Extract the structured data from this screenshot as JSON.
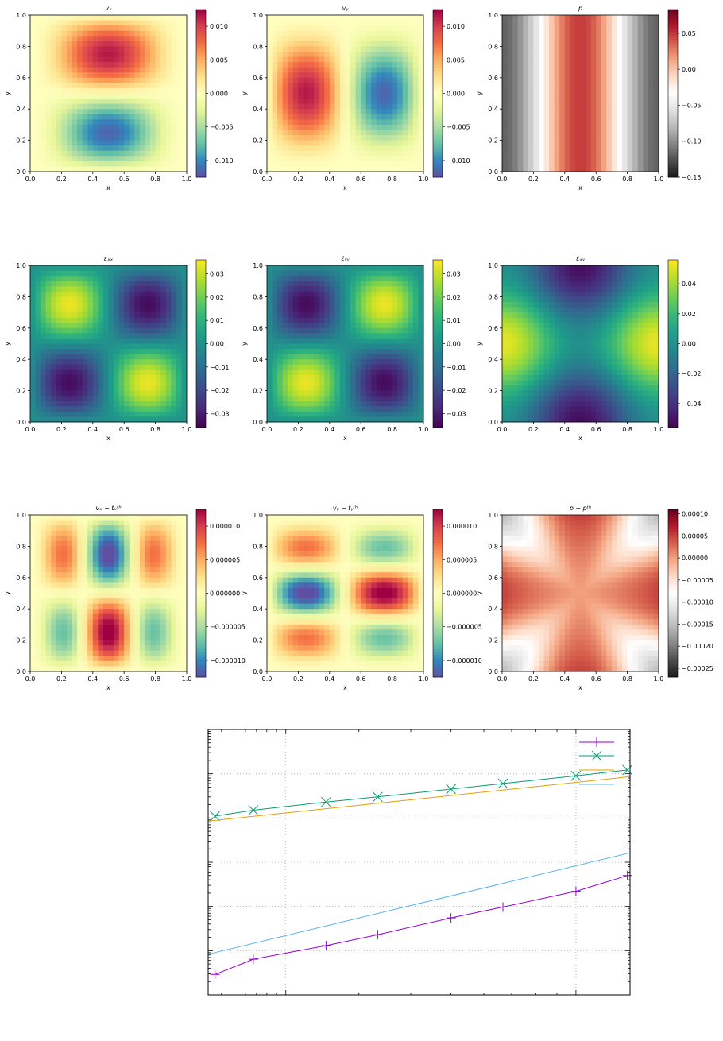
{
  "chart_data": [
    {
      "type": "heatmap",
      "field": "vx",
      "title": "vₓ",
      "xlabel": "x",
      "ylabel": "y",
      "xlim": [
        0,
        1
      ],
      "ylim": [
        0,
        1
      ],
      "xticks": [
        "0.0",
        "0.2",
        "0.4",
        "0.6",
        "0.8",
        "1.0"
      ],
      "yticks": [
        "0.0",
        "0.2",
        "0.4",
        "0.6",
        "0.8",
        "1.0"
      ],
      "colormap": "Spectral_r",
      "clim": [
        -0.0125,
        0.0125
      ],
      "colorbar_ticks": [
        "−0.010",
        "−0.005",
        "0.000",
        "0.005",
        "0.010"
      ],
      "colorbar_values": [
        -0.01,
        -0.005,
        0,
        0.005,
        0.01
      ]
    },
    {
      "type": "heatmap",
      "field": "vy",
      "title": "vᵧ",
      "xlabel": "x",
      "ylabel": "y",
      "xlim": [
        0,
        1
      ],
      "ylim": [
        0,
        1
      ],
      "xticks": [
        "0.0",
        "0.2",
        "0.4",
        "0.6",
        "0.8",
        "1.0"
      ],
      "yticks": [
        "0.0",
        "0.2",
        "0.4",
        "0.6",
        "0.8",
        "1.0"
      ],
      "colormap": "Spectral_r",
      "clim": [
        -0.0125,
        0.0125
      ],
      "colorbar_ticks": [
        "−0.010",
        "−0.005",
        "0.000",
        "0.005",
        "0.010"
      ],
      "colorbar_values": [
        -0.01,
        -0.005,
        0,
        0.005,
        0.01
      ]
    },
    {
      "type": "heatmap",
      "field": "p",
      "title": "p",
      "xlabel": "x",
      "ylabel": "y",
      "xlim": [
        0,
        1
      ],
      "ylim": [
        0,
        1
      ],
      "xticks": [
        "0.0",
        "0.2",
        "0.4",
        "0.6",
        "0.8",
        "1.0"
      ],
      "yticks": [
        "0.0",
        "0.2",
        "0.4",
        "0.6",
        "0.8",
        "1.0"
      ],
      "colormap": "RdGy_r",
      "clim": [
        -0.15,
        0.083
      ],
      "colorbar_ticks": [
        "−0.15",
        "−0.10",
        "−0.05",
        "0.00",
        "0.05"
      ],
      "colorbar_values": [
        -0.15,
        -0.1,
        -0.05,
        0,
        0.05
      ]
    },
    {
      "type": "heatmap",
      "field": "exx",
      "title": "ε̇ₓₓ",
      "xlabel": "x",
      "ylabel": "y",
      "xlim": [
        0,
        1
      ],
      "ylim": [
        0,
        1
      ],
      "xticks": [
        "0.0",
        "0.2",
        "0.4",
        "0.6",
        "0.8",
        "1.0"
      ],
      "yticks": [
        "0.0",
        "0.2",
        "0.4",
        "0.6",
        "0.8",
        "1.0"
      ],
      "colormap": "viridis",
      "clim": [
        -0.036,
        0.036
      ],
      "colorbar_ticks": [
        "−0.03",
        "−0.02",
        "−0.01",
        "0.00",
        "0.01",
        "0.02",
        "0.03"
      ],
      "colorbar_values": [
        -0.03,
        -0.02,
        -0.01,
        0,
        0.01,
        0.02,
        0.03
      ]
    },
    {
      "type": "heatmap",
      "field": "eyy",
      "title": "ε̇ᵧᵧ",
      "xlabel": "x",
      "ylabel": "y",
      "xlim": [
        0,
        1
      ],
      "ylim": [
        0,
        1
      ],
      "xticks": [
        "0.0",
        "0.2",
        "0.4",
        "0.6",
        "0.8",
        "1.0"
      ],
      "yticks": [
        "0.0",
        "0.2",
        "0.4",
        "0.6",
        "0.8",
        "1.0"
      ],
      "colormap": "viridis",
      "clim": [
        -0.036,
        0.036
      ],
      "colorbar_ticks": [
        "−0.03",
        "−0.02",
        "−0.01",
        "0.00",
        "0.01",
        "0.02",
        "0.03"
      ],
      "colorbar_values": [
        -0.03,
        -0.02,
        -0.01,
        0,
        0.01,
        0.02,
        0.03
      ]
    },
    {
      "type": "heatmap",
      "field": "exy",
      "title": "ε̇ₓᵧ",
      "xlabel": "x",
      "ylabel": "y",
      "xlim": [
        0,
        1
      ],
      "ylim": [
        0,
        1
      ],
      "xticks": [
        "0.0",
        "0.2",
        "0.4",
        "0.6",
        "0.8",
        "1.0"
      ],
      "yticks": [
        "0.0",
        "0.2",
        "0.4",
        "0.6",
        "0.8",
        "1.0"
      ],
      "colormap": "viridis",
      "clim": [
        -0.056,
        0.056
      ],
      "colorbar_ticks": [
        "−0.04",
        "−0.02",
        "0.00",
        "0.02",
        "0.04"
      ],
      "colorbar_values": [
        -0.04,
        -0.02,
        0,
        0.02,
        0.04
      ]
    },
    {
      "type": "heatmap",
      "field": "evx",
      "title": "vₓ − tₓᵗʰ",
      "xlabel": "x",
      "ylabel": "y",
      "xlim": [
        0,
        1
      ],
      "ylim": [
        0,
        1
      ],
      "xticks": [
        "0.0",
        "0.2",
        "0.4",
        "0.6",
        "0.8",
        "1.0"
      ],
      "yticks": [
        "0.0",
        "0.2",
        "0.4",
        "0.6",
        "0.8",
        "1.0"
      ],
      "colormap": "Spectral_r",
      "clim": [
        -1.25e-05,
        1.25e-05
      ],
      "colorbar_ticks": [
        "−0.000010",
        "−0.000005",
        "0.000000",
        "0.000005",
        "0.000010"
      ],
      "colorbar_values": [
        -1e-05,
        -5e-06,
        0,
        5e-06,
        1e-05
      ]
    },
    {
      "type": "heatmap",
      "field": "evy",
      "title": "vᵧ − tᵧᵗʰ",
      "xlabel": "x",
      "ylabel": "y",
      "xlim": [
        0,
        1
      ],
      "ylim": [
        0,
        1
      ],
      "xticks": [
        "0.0",
        "0.2",
        "0.4",
        "0.6",
        "0.8",
        "1.0"
      ],
      "yticks": [
        "0.0",
        "0.2",
        "0.4",
        "0.6",
        "0.8",
        "1.0"
      ],
      "colormap": "Spectral_r",
      "clim": [
        -1.25e-05,
        1.25e-05
      ],
      "colorbar_ticks": [
        "−0.000010",
        "−0.000005",
        "0.000000",
        "0.000005",
        "0.000010"
      ],
      "colorbar_values": [
        -1e-05,
        -5e-06,
        0,
        5e-06,
        1e-05
      ]
    },
    {
      "type": "heatmap",
      "field": "ep",
      "title": "p − pᵗʰ",
      "xlabel": "x",
      "ylabel": "y",
      "xlim": [
        0,
        1
      ],
      "ylim": [
        0,
        1
      ],
      "xticks": [
        "0.0",
        "0.2",
        "0.4",
        "0.6",
        "0.8",
        "1.0"
      ],
      "yticks": [
        "0.0",
        "0.2",
        "0.4",
        "0.6",
        "0.8",
        "1.0"
      ],
      "colormap": "RdGy_r",
      "clim": [
        -0.00027,
        0.00011
      ],
      "colorbar_ticks": [
        "−0.00025",
        "−0.00020",
        "−0.00015",
        "−0.00010",
        "−0.00005",
        "0.00000",
        "0.00005",
        "0.00010"
      ],
      "colorbar_values": [
        -0.00025,
        -0.0002,
        -0.00015,
        -0.0001,
        -5e-05,
        0,
        5e-05,
        0.0001
      ]
    },
    {
      "type": "line",
      "title": "",
      "xlabel": "",
      "ylabel": "",
      "x_scale": "log",
      "y_scale": "log",
      "xlim": [
        0.013,
        0.135
      ],
      "ylim": [
        1e-07,
        0.1
      ],
      "grid": true,
      "legend_position": "top-right",
      "series": [
        {
          "marker": "+",
          "color": "#9400d3",
          "x": [
            0.0135,
            0.0167,
            0.025,
            0.0333,
            0.05,
            0.0667,
            0.1,
            0.133
          ],
          "y": [
            2.9e-07,
            6.4e-07,
            1.3e-06,
            2.3e-06,
            5.5e-06,
            9.7e-06,
            2.2e-05,
            5e-05
          ]
        },
        {
          "marker": "x",
          "color": "#009e73",
          "x": [
            0.0135,
            0.0167,
            0.025,
            0.0333,
            0.05,
            0.0667,
            0.1,
            0.133
          ],
          "y": [
            0.0011,
            0.0015,
            0.0023,
            0.003,
            0.0045,
            0.006,
            0.009,
            0.0122
          ]
        },
        {
          "marker": "none",
          "color": "#e69f00",
          "x": [
            0.013,
            0.135
          ],
          "y": [
            0.00085,
            0.0086
          ]
        },
        {
          "marker": "none",
          "color": "#56b4e9",
          "x": [
            0.013,
            0.135
          ],
          "y": [
            8.3e-07,
            0.000163
          ]
        }
      ]
    }
  ]
}
